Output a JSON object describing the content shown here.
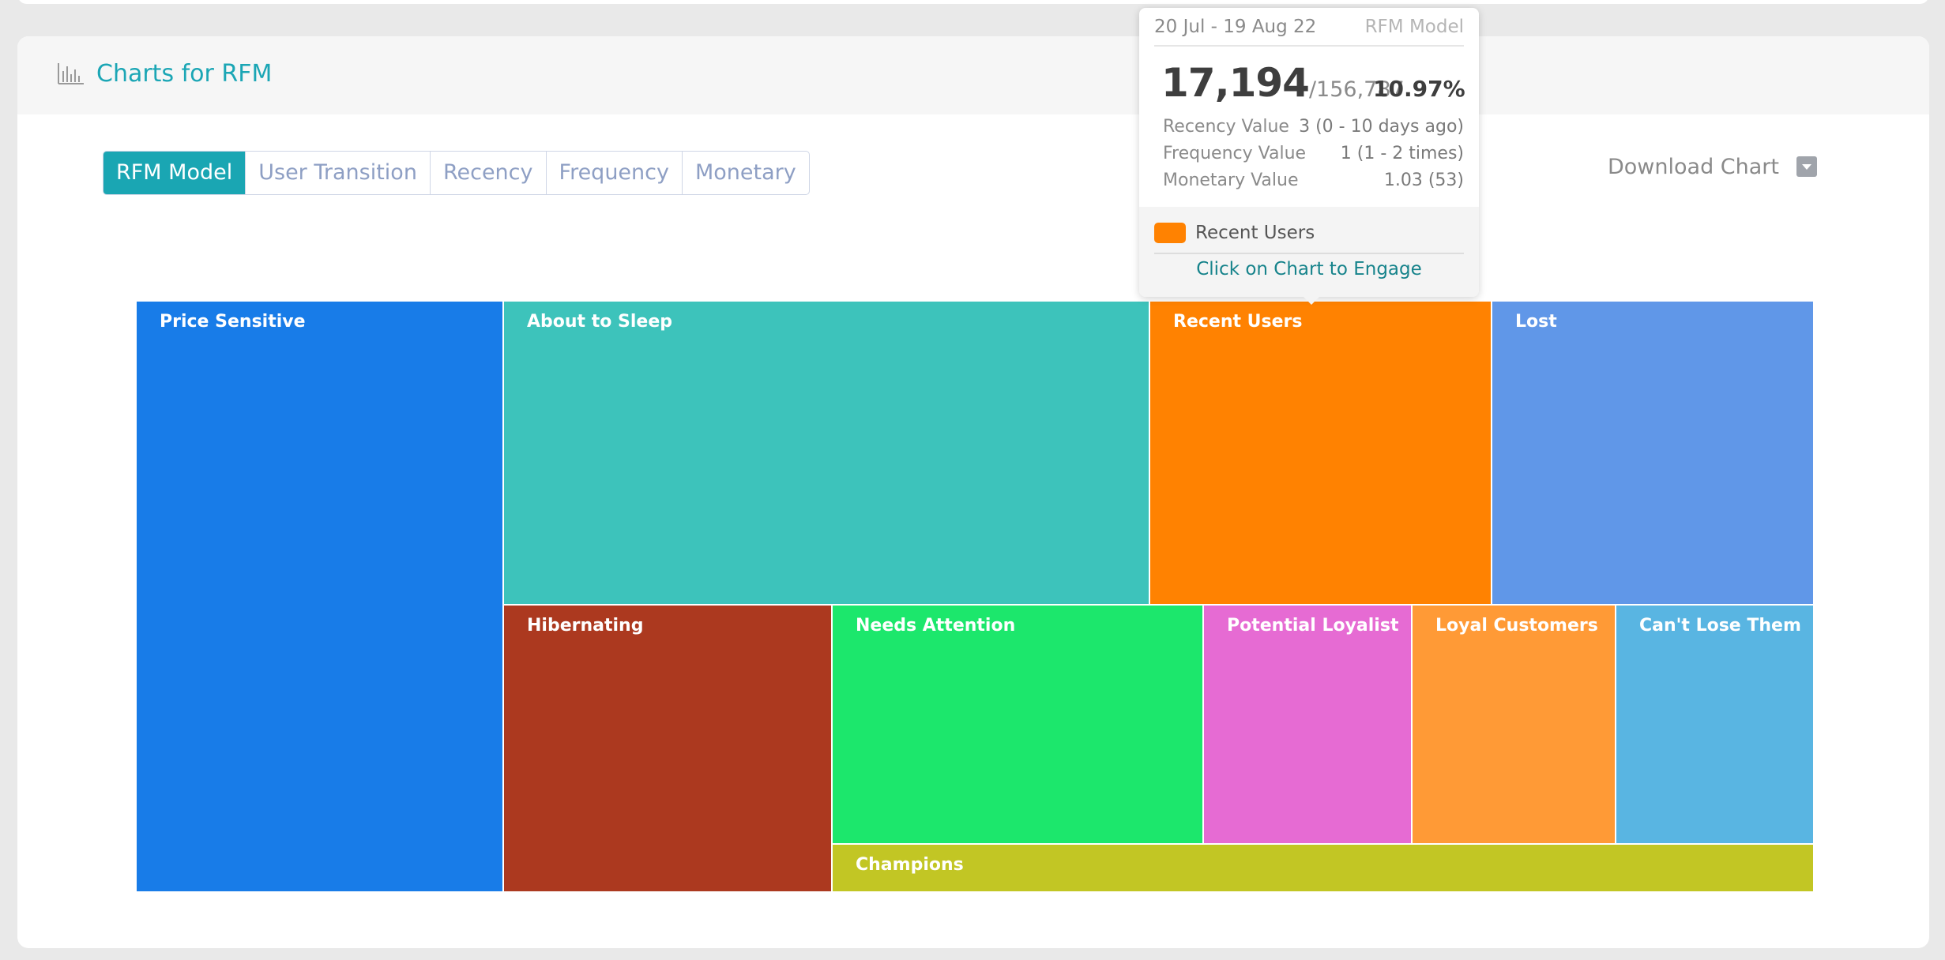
{
  "header": {
    "title": "Charts for RFM",
    "icon": "bar-chart-icon"
  },
  "tabs": [
    {
      "label": "RFM Model",
      "active": true
    },
    {
      "label": "User Transition",
      "active": false
    },
    {
      "label": "Recency",
      "active": false
    },
    {
      "label": "Frequency",
      "active": false
    },
    {
      "label": "Monetary",
      "active": false
    }
  ],
  "download": {
    "label": "Download Chart",
    "icon": "dropdown-caret-icon"
  },
  "tooltip": {
    "date_range": "20 Jul - 19 Aug 22",
    "model": "RFM Model",
    "count": "17,194",
    "total": "/156,787",
    "percent": "10.97%",
    "rows": [
      {
        "label": "Recency Value",
        "value": "3 (0 - 10 days ago)"
      },
      {
        "label": "Frequency Value",
        "value": "1 (1 - 2 times)"
      },
      {
        "label": "Monetary Value",
        "value": "1.03 (53)"
      }
    ],
    "segment": "Recent Users",
    "segment_color": "#ff8201",
    "cta": "Click on Chart to Engage"
  },
  "chart_data": {
    "type": "treemap",
    "title": "",
    "segments": [
      {
        "name": "Price Sensitive",
        "color": "#187ce8"
      },
      {
        "name": "About to Sleep",
        "color": "#3dc3bb"
      },
      {
        "name": "Recent Users",
        "color": "#ff8201",
        "users": 17194,
        "percent": 10.97
      },
      {
        "name": "Lost",
        "color": "#6097e8"
      },
      {
        "name": "Hibernating",
        "color": "#ac391f"
      },
      {
        "name": "Needs Attention",
        "color": "#1ce76c"
      },
      {
        "name": "Potential Loyalist",
        "color": "#e66bd3"
      },
      {
        "name": "Loyal Customers",
        "color": "#ff9a36"
      },
      {
        "name": "Can't Lose Them",
        "color": "#59b5e2"
      },
      {
        "name": "Champions",
        "color": "#c2c624"
      }
    ],
    "total_users": 156787
  }
}
